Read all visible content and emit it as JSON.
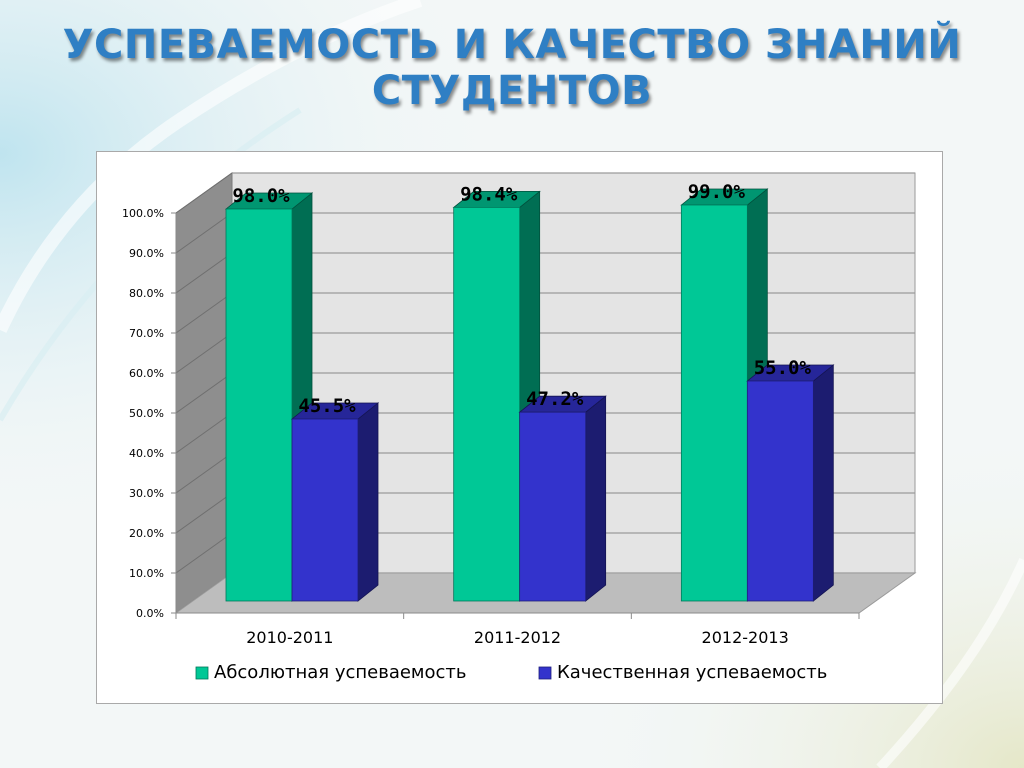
{
  "slide": {
    "title": "УСПЕВАЕМОСТЬ И КАЧЕСТВО ЗНАНИЙ СТУДЕНТОВ"
  },
  "chart_data": {
    "type": "bar",
    "categories": [
      "2010-2011",
      "2011-2012",
      "2012-2013"
    ],
    "series": [
      {
        "name": "Абсолютная успеваемость",
        "values": [
          98.0,
          98.4,
          99.0
        ],
        "labels": [
          "98.0%",
          "98.4%",
          "99.0%"
        ],
        "color": "#00c896"
      },
      {
        "name": "Качественная успеваемость",
        "values": [
          45.5,
          47.2,
          55.0
        ],
        "labels": [
          "45.5%",
          "47.2%",
          "55.0%"
        ],
        "color": "#3333cc"
      }
    ],
    "ylim": [
      0,
      100
    ],
    "yticks": [
      "0.0%",
      "10.0%",
      "20.0%",
      "30.0%",
      "40.0%",
      "50.0%",
      "60.0%",
      "70.0%",
      "80.0%",
      "90.0%",
      "100.0%"
    ],
    "grid": true,
    "legend_position": "bottom",
    "style": "3d"
  }
}
